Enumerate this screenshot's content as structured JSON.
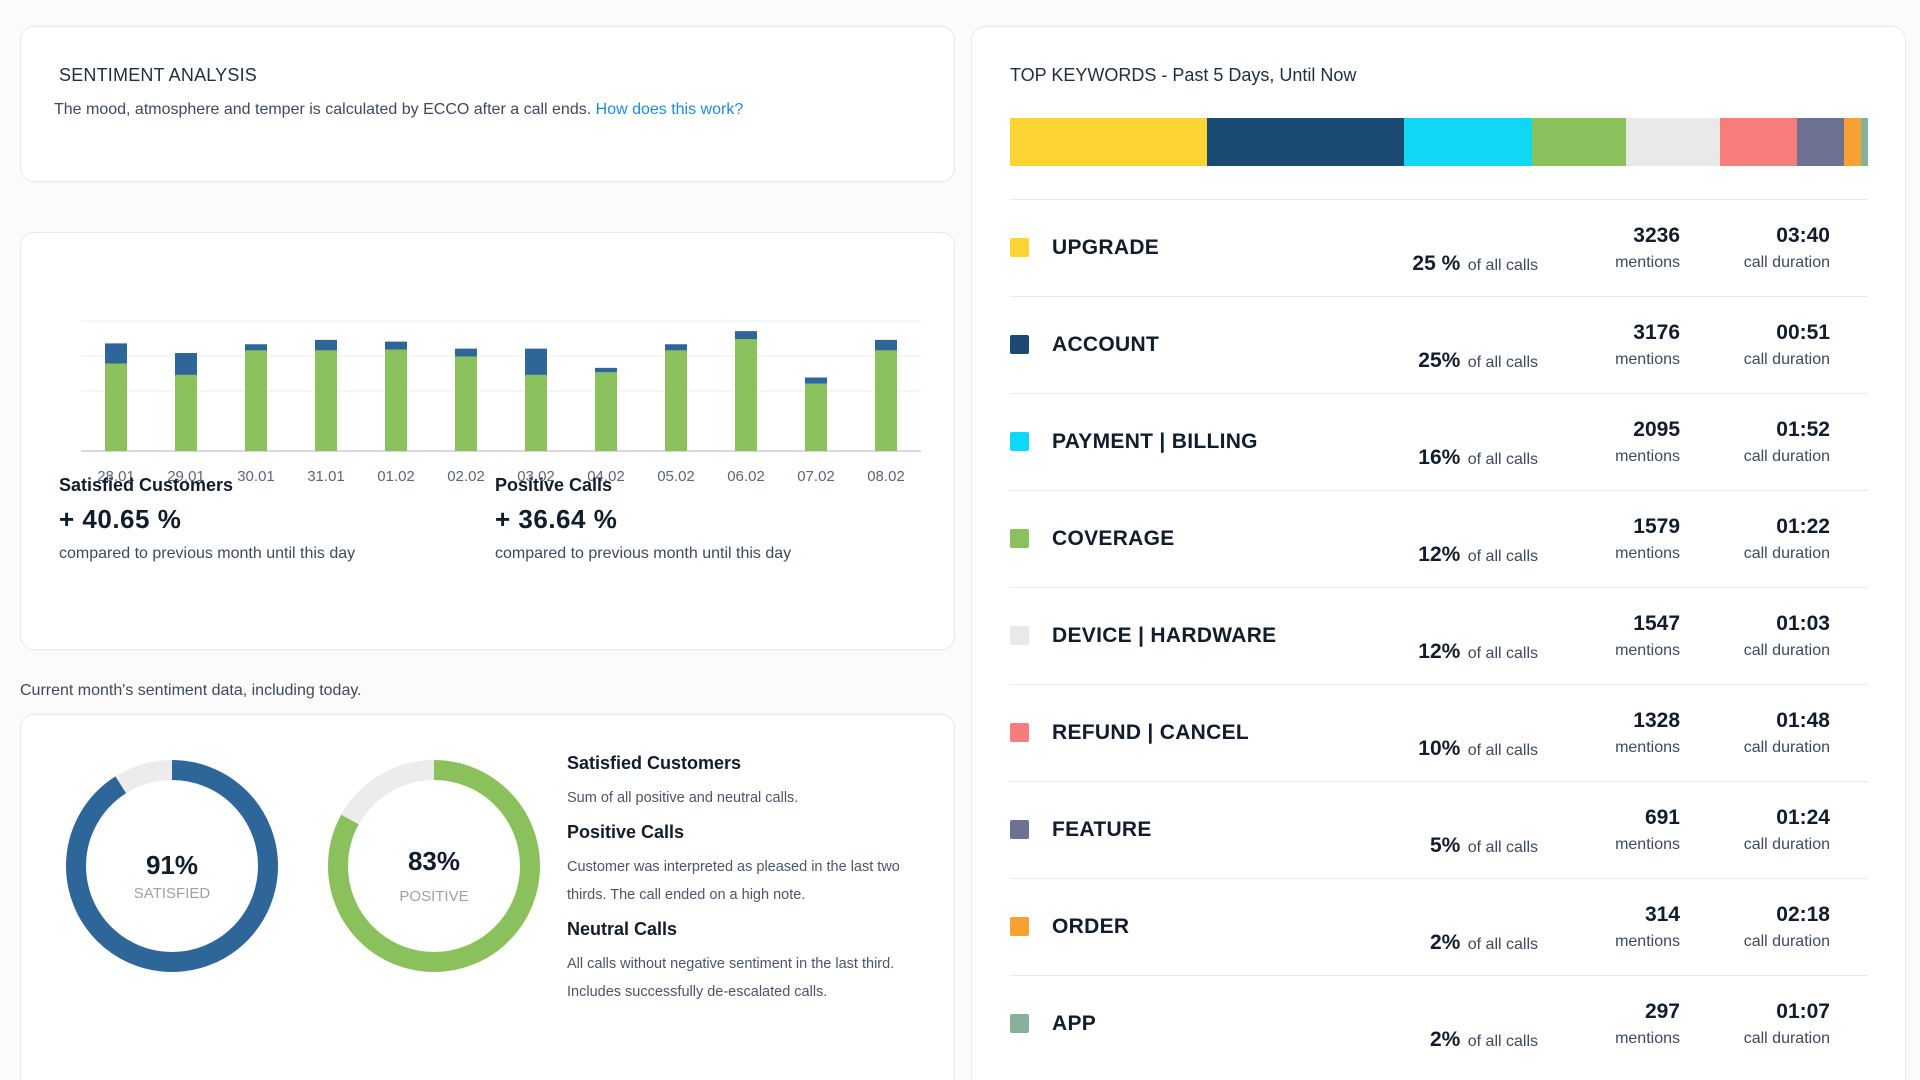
{
  "sentiment": {
    "title": "SENTIMENT ANALYSIS",
    "subtitle": "The mood, atmosphere and temper is calculated by ECCO after a call ends.",
    "link": "How does this work?"
  },
  "chart_data": {
    "type": "bar",
    "stacked": true,
    "categories": [
      "28.01",
      "29.01",
      "30.01",
      "31.01",
      "01.02",
      "02.02",
      "03.02",
      "04.02",
      "05.02",
      "06.02",
      "07.02",
      "08.02"
    ],
    "series": [
      {
        "color": "#8bc15c",
        "values": [
          100,
          87,
          115,
          115,
          116,
          108,
          87,
          90,
          115,
          128,
          77,
          115
        ]
      },
      {
        "color": "#2f6699",
        "values": [
          23,
          25,
          7,
          12,
          9,
          9,
          30,
          5,
          7,
          9,
          7,
          12
        ]
      }
    ],
    "ylim": [
      0,
      160
    ],
    "grid": true
  },
  "stats": {
    "satisfied": {
      "label": "Satisfied Customers",
      "value": "+ 40.65 %",
      "note": "compared to previous month until this day"
    },
    "positive": {
      "label": "Positive Calls",
      "value": "+ 36.64 %",
      "note": "compared to previous month until this day"
    }
  },
  "month_note": "Current month's sentiment data, including today.",
  "donuts": {
    "satisfied": {
      "percent": 91,
      "value": "91%",
      "label": "SATISFIED",
      "color": "#2f6699"
    },
    "positive": {
      "percent": 83,
      "value": "83%",
      "label": "POSITIVE",
      "color": "#8bc15c"
    }
  },
  "legend": [
    {
      "title": "Satisfied Customers",
      "desc": "Sum of all positive and neutral calls."
    },
    {
      "title": "Positive Calls",
      "desc": "Customer was interpreted as pleased in the last two thirds. The call ended on a high note."
    },
    {
      "title": "Neutral Calls",
      "desc": "All calls without negative sentiment in the last third. Includes successfully de-escalated calls."
    }
  ],
  "keywords": {
    "title": "TOP KEYWORDS - Past 5 Days, Until Now",
    "pct_suffix": "of all calls",
    "mentions_label": "mentions",
    "duration_label": "call duration",
    "items": [
      {
        "name": "UPGRADE",
        "color": "#fcd535",
        "pct": "25 %",
        "mentions": "3236",
        "duration": "03:40",
        "share": 23
      },
      {
        "name": "ACCOUNT",
        "color": "#1b4a72",
        "pct": "25%",
        "mentions": "3176",
        "duration": "00:51",
        "share": 23
      },
      {
        "name": "PAYMENT | BILLING",
        "color": "#0fd8f4",
        "pct": "16%",
        "mentions": "2095",
        "duration": "01:52",
        "share": 15
      },
      {
        "name": "COVERAGE",
        "color": "#8bc15c",
        "pct": "12%",
        "mentions": "1579",
        "duration": "01:22",
        "share": 11
      },
      {
        "name": "DEVICE | HARDWARE",
        "color": "#e9e9e9",
        "pct": "12%",
        "mentions": "1547",
        "duration": "01:03",
        "share": 11
      },
      {
        "name": "REFUND | CANCEL",
        "color": "#f77d7d",
        "pct": "10%",
        "mentions": "1328",
        "duration": "01:48",
        "share": 9
      },
      {
        "name": "FEATURE",
        "color": "#6e7292",
        "pct": "5%",
        "mentions": "691",
        "duration": "01:24",
        "share": 5.5
      },
      {
        "name": "ORDER",
        "color": "#f8a031",
        "pct": "2%",
        "mentions": "314",
        "duration": "02:18",
        "share": 2
      },
      {
        "name": "APP",
        "color": "#86b29b",
        "pct": "2%",
        "mentions": "297",
        "duration": "01:07",
        "share": 0.8
      }
    ]
  }
}
